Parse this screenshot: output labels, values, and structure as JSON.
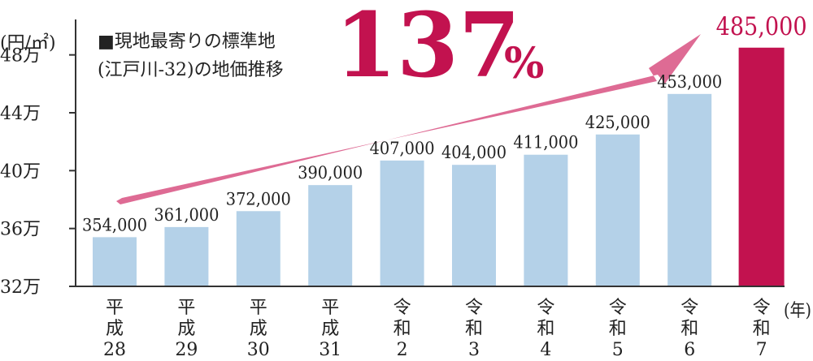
{
  "chart_data": {
    "type": "bar",
    "title": "■現地最寄りの標準地",
    "subtitle": "(江戸川-32)の地価推移",
    "ylabel": "(円/㎡)",
    "xlabel": "(年)",
    "ylim": [
      320000,
      500000
    ],
    "yticks": [
      {
        "value": 320000,
        "label": "32万"
      },
      {
        "value": 360000,
        "label": "36万"
      },
      {
        "value": 400000,
        "label": "40万"
      },
      {
        "value": 440000,
        "label": "44万"
      },
      {
        "value": 480000,
        "label": "48万"
      }
    ],
    "categories": [
      [
        "平",
        "成",
        "28"
      ],
      [
        "平",
        "成",
        "29"
      ],
      [
        "平",
        "成",
        "30"
      ],
      [
        "平",
        "成",
        "31"
      ],
      [
        "令",
        "和",
        "2"
      ],
      [
        "令",
        "和",
        "3"
      ],
      [
        "令",
        "和",
        "4"
      ],
      [
        "令",
        "和",
        "5"
      ],
      [
        "令",
        "和",
        "6"
      ],
      [
        "令",
        "和",
        "7"
      ]
    ],
    "values": [
      354000,
      361000,
      372000,
      390000,
      407000,
      404000,
      411000,
      425000,
      453000,
      485000
    ],
    "value_labels": [
      "354,000",
      "361,000",
      "372,000",
      "390,000",
      "407,000",
      "404,000",
      "411,000",
      "425,000",
      "453,000",
      "485,000"
    ],
    "highlight_index": 9,
    "annotation": {
      "number": "137",
      "unit": "%"
    },
    "colors": {
      "bar": "#b4d1e8",
      "highlight": "#c2124f",
      "arrow": "#de6b94",
      "text": "#222222",
      "axis": "#333333"
    }
  }
}
